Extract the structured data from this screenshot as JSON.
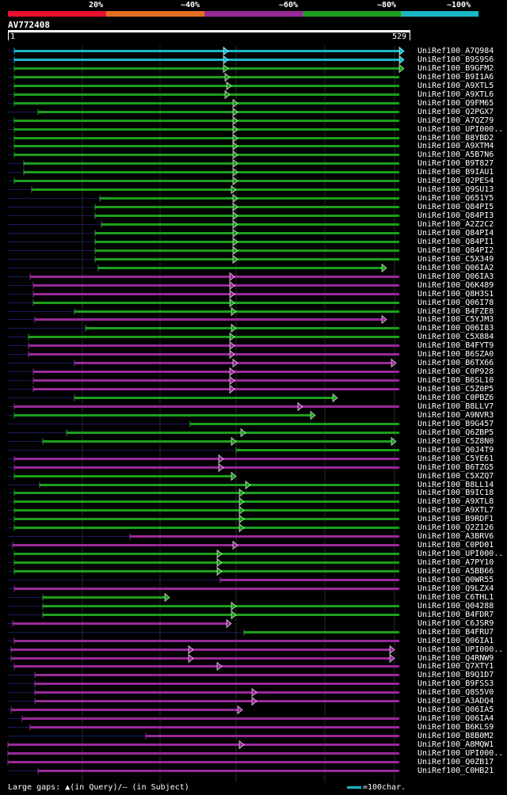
{
  "legend": {
    "labels": [
      "20%",
      "~40%",
      "~60%",
      "~80%",
      "~100%"
    ],
    "colors": [
      "#e8112d",
      "#e07020",
      "#982a98",
      "#1d9e1d",
      "#1bb8c8"
    ]
  },
  "query": {
    "id": "AV772408",
    "start": "1",
    "end": "529"
  },
  "footer": {
    "gaps_text": "Large gaps: ▲(in Query)/– (in Subject)",
    "scale_text": "=100char."
  },
  "hits": [
    {
      "label": "UniRef100_A7Q984",
      "color": "cyan",
      "start": 18,
      "end": 510,
      "arrows": [
        288,
        510
      ]
    },
    {
      "label": "UniRef100_B9S9S6",
      "color": "cyan",
      "start": 18,
      "end": 510,
      "arrows": [
        288,
        510
      ]
    },
    {
      "label": "UniRef100_B9GFM2",
      "color": "green",
      "start": 18,
      "end": 510,
      "arrows": [
        288,
        510
      ]
    },
    {
      "label": "UniRef100_B9I1A6",
      "color": "green",
      "start": 18,
      "end": 510,
      "arrows": [
        290
      ]
    },
    {
      "label": "UniRef100_A9XTL5",
      "color": "green",
      "start": 18,
      "end": 510,
      "arrows": [
        292
      ]
    },
    {
      "label": "UniRef100_A9XTL6",
      "color": "green",
      "start": 18,
      "end": 510,
      "arrows": [
        290
      ]
    },
    {
      "label": "UniRef100_Q9FM65",
      "color": "green",
      "start": 18,
      "end": 510,
      "arrows": [
        300
      ]
    },
    {
      "label": "UniRef100_Q2PGX7",
      "color": "green",
      "start": 48,
      "end": 510,
      "arrows": [
        300
      ]
    },
    {
      "label": "UniRef100_A7QZ79",
      "color": "green",
      "start": 18,
      "end": 510,
      "arrows": [
        300
      ]
    },
    {
      "label": "UniRef100_UPI000..",
      "color": "green",
      "start": 18,
      "end": 510,
      "arrows": [
        300
      ]
    },
    {
      "label": "UniRef100_B8YBD2",
      "color": "green",
      "start": 18,
      "end": 510,
      "arrows": [
        300
      ]
    },
    {
      "label": "UniRef100_A9XTM4",
      "color": "green",
      "start": 18,
      "end": 510,
      "arrows": [
        300
      ]
    },
    {
      "label": "UniRef100_A5B7N6",
      "color": "green",
      "start": 18,
      "end": 510,
      "arrows": [
        300
      ]
    },
    {
      "label": "UniRef100_B9T827",
      "color": "green",
      "start": 30,
      "end": 510,
      "arrows": [
        300
      ]
    },
    {
      "label": "UniRef100_B9IAU1",
      "color": "green",
      "start": 30,
      "end": 510,
      "arrows": [
        300
      ]
    },
    {
      "label": "UniRef100_Q2PES4",
      "color": "green",
      "start": 18,
      "end": 510,
      "arrows": [
        300
      ]
    },
    {
      "label": "UniRef100_Q9SU13",
      "color": "green",
      "start": 40,
      "end": 510,
      "arrows": [
        298
      ]
    },
    {
      "label": "UniRef100_Q651Y5",
      "color": "green",
      "start": 126,
      "end": 510,
      "arrows": [
        300
      ]
    },
    {
      "label": "UniRef100_Q84PI5",
      "color": "green",
      "start": 120,
      "end": 510,
      "arrows": [
        300
      ]
    },
    {
      "label": "UniRef100_Q84PI3",
      "color": "green",
      "start": 120,
      "end": 510,
      "arrows": [
        300
      ]
    },
    {
      "label": "UniRef100_A2Z2C2",
      "color": "green",
      "start": 128,
      "end": 510,
      "arrows": [
        300
      ]
    },
    {
      "label": "UniRef100_Q84PI4",
      "color": "green",
      "start": 120,
      "end": 510,
      "arrows": [
        300
      ]
    },
    {
      "label": "UniRef100_Q84PI1",
      "color": "green",
      "start": 120,
      "end": 510,
      "arrows": [
        300
      ]
    },
    {
      "label": "UniRef100_Q84PI2",
      "color": "green",
      "start": 120,
      "end": 510,
      "arrows": [
        300
      ]
    },
    {
      "label": "UniRef100_C5X349",
      "color": "green",
      "start": 120,
      "end": 510,
      "arrows": [
        300
      ]
    },
    {
      "label": "UniRef100_Q06IA2",
      "color": "green",
      "start": 124,
      "end": 488,
      "arrows": [
        488
      ]
    },
    {
      "label": "UniRef100_Q06IA3",
      "color": "magenta",
      "start": 38,
      "end": 510,
      "arrows": [
        296
      ]
    },
    {
      "label": "UniRef100_Q6K489",
      "color": "magenta",
      "start": 42,
      "end": 510,
      "arrows": [
        296
      ]
    },
    {
      "label": "UniRef100_Q8H3S1",
      "color": "magenta",
      "start": 42,
      "end": 510,
      "arrows": [
        296
      ]
    },
    {
      "label": "UniRef100_Q06I78",
      "color": "green",
      "start": 42,
      "end": 510,
      "arrows": [
        296
      ]
    },
    {
      "label": "UniRef100_B4FZE8",
      "color": "green",
      "start": 94,
      "end": 510,
      "arrows": [
        298
      ]
    },
    {
      "label": "UniRef100_C5YJM3",
      "color": "magenta",
      "start": 44,
      "end": 488,
      "arrows": [
        488
      ]
    },
    {
      "label": "UniRef100_Q06I83",
      "color": "green",
      "start": 108,
      "end": 510,
      "arrows": [
        298
      ]
    },
    {
      "label": "UniRef100_C5X884",
      "color": "green",
      "start": 36,
      "end": 510,
      "arrows": [
        296
      ]
    },
    {
      "label": "UniRef100_B4FYT9",
      "color": "magenta",
      "start": 36,
      "end": 510,
      "arrows": [
        296
      ]
    },
    {
      "label": "UniRef100_B6SZA0",
      "color": "magenta",
      "start": 36,
      "end": 510,
      "arrows": [
        296
      ]
    },
    {
      "label": "UniRef100_B6TX66",
      "color": "magenta",
      "start": 94,
      "end": 500,
      "arrows": [
        300,
        500
      ]
    },
    {
      "label": "UniRef100_C0P928",
      "color": "magenta",
      "start": 42,
      "end": 510,
      "arrows": [
        296
      ]
    },
    {
      "label": "UniRef100_B6SL10",
      "color": "magenta",
      "start": 42,
      "end": 510,
      "arrows": [
        296
      ]
    },
    {
      "label": "UniRef100_C5Z0P5",
      "color": "magenta",
      "start": 42,
      "end": 510,
      "arrows": [
        296
      ]
    },
    {
      "label": "UniRef100_C0PBZ6",
      "color": "green",
      "start": 94,
      "end": 426,
      "arrows": [
        426
      ]
    },
    {
      "label": "UniRef100_B8LLV7",
      "color": "magenta",
      "start": 18,
      "end": 510,
      "arrows": [
        382
      ]
    },
    {
      "label": "UniRef100_A9NVR3",
      "color": "green",
      "start": 18,
      "end": 398,
      "arrows": [
        398
      ]
    },
    {
      "label": "UniRef100_B9G457",
      "color": "green",
      "start": 240,
      "end": 510,
      "arrows": []
    },
    {
      "label": "UniRef100_Q6ZBP5",
      "color": "green",
      "start": 84,
      "end": 510,
      "arrows": [
        310
      ]
    },
    {
      "label": "UniRef100_C5Z8N0",
      "color": "green",
      "start": 54,
      "end": 500,
      "arrows": [
        298,
        500
      ]
    },
    {
      "label": "UniRef100_Q0J4T9",
      "color": "green",
      "start": 298,
      "end": 510,
      "arrows": []
    },
    {
      "label": "UniRef100_C5YE61",
      "color": "magenta",
      "start": 18,
      "end": 510,
      "arrows": [
        282
      ]
    },
    {
      "label": "UniRef100_B6TZG5",
      "color": "magenta",
      "start": 18,
      "end": 510,
      "arrows": [
        282
      ]
    },
    {
      "label": "UniRef100_C5XZQ7",
      "color": "green",
      "start": 18,
      "end": 298,
      "arrows": [
        298
      ]
    },
    {
      "label": "UniRef100_B8LL14",
      "color": "green",
      "start": 50,
      "end": 510,
      "arrows": [
        316
      ]
    },
    {
      "label": "UniRef100_B9IC18",
      "color": "green",
      "start": 18,
      "end": 510,
      "arrows": [
        308
      ]
    },
    {
      "label": "UniRef100_A9XTL8",
      "color": "green",
      "start": 18,
      "end": 510,
      "arrows": [
        308
      ]
    },
    {
      "label": "UniRef100_A9XTL7",
      "color": "green",
      "start": 18,
      "end": 510,
      "arrows": [
        308
      ]
    },
    {
      "label": "UniRef100_B9RDF1",
      "color": "green",
      "start": 18,
      "end": 510,
      "arrows": [
        308
      ]
    },
    {
      "label": "UniRef100_Q2Z126",
      "color": "green",
      "start": 18,
      "end": 510,
      "arrows": [
        308
      ]
    },
    {
      "label": "UniRef100_A3BRV6",
      "color": "magenta",
      "start": 164,
      "end": 510,
      "arrows": []
    },
    {
      "label": "UniRef100_C0PD01",
      "color": "magenta",
      "start": 16,
      "end": 510,
      "arrows": [
        300
      ]
    },
    {
      "label": "UniRef100_UPI000..",
      "color": "green",
      "start": 18,
      "end": 510,
      "arrows": [
        280
      ]
    },
    {
      "label": "UniRef100_A7PY10",
      "color": "green",
      "start": 18,
      "end": 510,
      "arrows": [
        280
      ]
    },
    {
      "label": "UniRef100_A5BB66",
      "color": "green",
      "start": 18,
      "end": 510,
      "arrows": [
        280
      ]
    },
    {
      "label": "UniRef100_Q0WR55",
      "color": "magenta",
      "start": 278,
      "end": 510,
      "arrows": []
    },
    {
      "label": "UniRef100_Q9LZX4",
      "color": "magenta",
      "start": 18,
      "end": 510,
      "arrows": []
    },
    {
      "label": "UniRef100_C6THL1",
      "color": "green",
      "start": 54,
      "end": 214,
      "arrows": [
        214
      ]
    },
    {
      "label": "UniRef100_Q04288",
      "color": "green",
      "start": 54,
      "end": 510,
      "arrows": [
        298
      ]
    },
    {
      "label": "UniRef100_B4FDR7",
      "color": "green",
      "start": 54,
      "end": 510,
      "arrows": [
        298
      ]
    },
    {
      "label": "UniRef100_C6JSR9",
      "color": "magenta",
      "start": 16,
      "end": 292,
      "arrows": [
        292
      ]
    },
    {
      "label": "UniRef100_B4FRU7",
      "color": "green",
      "start": 308,
      "end": 510,
      "arrows": []
    },
    {
      "label": "UniRef100_Q06IA1",
      "color": "magenta",
      "start": 18,
      "end": 510,
      "arrows": []
    },
    {
      "label": "UniRef100_UPI000..",
      "color": "magenta",
      "start": 14,
      "end": 498,
      "arrows": [
        244,
        498
      ]
    },
    {
      "label": "UniRef100_Q4RNW9",
      "color": "magenta",
      "start": 14,
      "end": 498,
      "arrows": [
        244,
        498
      ]
    },
    {
      "label": "UniRef100_Q7XTY1",
      "color": "magenta",
      "start": 18,
      "end": 510,
      "arrows": [
        280
      ]
    },
    {
      "label": "UniRef100_B9Q1D7",
      "color": "magenta",
      "start": 44,
      "end": 510,
      "arrows": []
    },
    {
      "label": "UniRef100_B9FSS3",
      "color": "magenta",
      "start": 44,
      "end": 510,
      "arrows": []
    },
    {
      "label": "UniRef100_Q8S5V0",
      "color": "magenta",
      "start": 44,
      "end": 510,
      "arrows": [
        324
      ]
    },
    {
      "label": "UniRef100_A3ADQ4",
      "color": "magenta",
      "start": 44,
      "end": 510,
      "arrows": [
        324
      ]
    },
    {
      "label": "UniRef100_Q06IA5",
      "color": "magenta",
      "start": 14,
      "end": 306,
      "arrows": [
        306
      ]
    },
    {
      "label": "UniRef100_Q06IA4",
      "color": "magenta",
      "start": 28,
      "end": 510,
      "arrows": []
    },
    {
      "label": "UniRef100_B6KLS9",
      "color": "magenta",
      "start": 38,
      "end": 510,
      "arrows": []
    },
    {
      "label": "UniRef100_B8B0M2",
      "color": "magenta",
      "start": 184,
      "end": 510,
      "arrows": []
    },
    {
      "label": "UniRef100_A8MQW1",
      "color": "magenta",
      "start": 10,
      "end": 510,
      "arrows": [
        308
      ]
    },
    {
      "label": "UniRef100_UPI000..",
      "color": "magenta",
      "start": 10,
      "end": 510,
      "arrows": []
    },
    {
      "label": "UniRef100_Q0ZB17",
      "color": "magenta",
      "start": 10,
      "end": 510,
      "arrows": []
    },
    {
      "label": "UniRef100_C0HB21",
      "color": "magenta",
      "start": 48,
      "end": 510,
      "arrows": []
    }
  ]
}
